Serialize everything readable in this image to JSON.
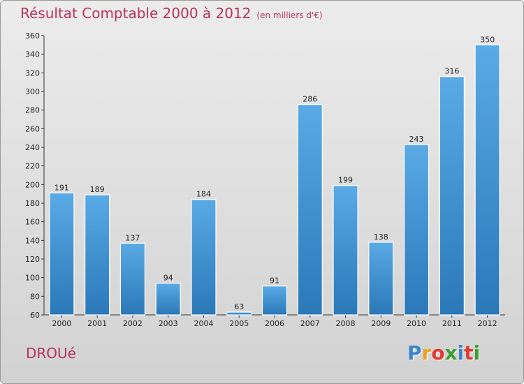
{
  "title": "Résultat Comptable 2000 à 2012",
  "subtitle": "(en milliers d'€)",
  "city": "DROUé",
  "logo": {
    "letters": [
      "P",
      "r",
      "o",
      "x",
      "i",
      "t",
      "i"
    ],
    "colors": [
      "#3a86c8",
      "#f0a020",
      "#e03a30",
      "#3aa030",
      "#3a86c8",
      "#e03a30",
      "#3aa030"
    ]
  },
  "colors": {
    "bar_top": "#5aaae6",
    "bar_bottom": "#2a78b8",
    "accent": "#b8325a"
  },
  "chart_data": {
    "type": "bar",
    "title": "Résultat Comptable 2000 à 2012",
    "xlabel": "",
    "ylabel": "",
    "categories": [
      "2000",
      "2001",
      "2002",
      "2003",
      "2004",
      "2005",
      "2006",
      "2007",
      "2008",
      "2009",
      "2010",
      "2011",
      "2012"
    ],
    "values": [
      191,
      189,
      137,
      94,
      184,
      63,
      91,
      286,
      199,
      138,
      243,
      316,
      350
    ],
    "ylim": [
      60,
      360
    ],
    "yticks": [
      60,
      80,
      100,
      120,
      140,
      160,
      180,
      200,
      220,
      240,
      260,
      280,
      300,
      320,
      340,
      360
    ],
    "grid": false
  }
}
